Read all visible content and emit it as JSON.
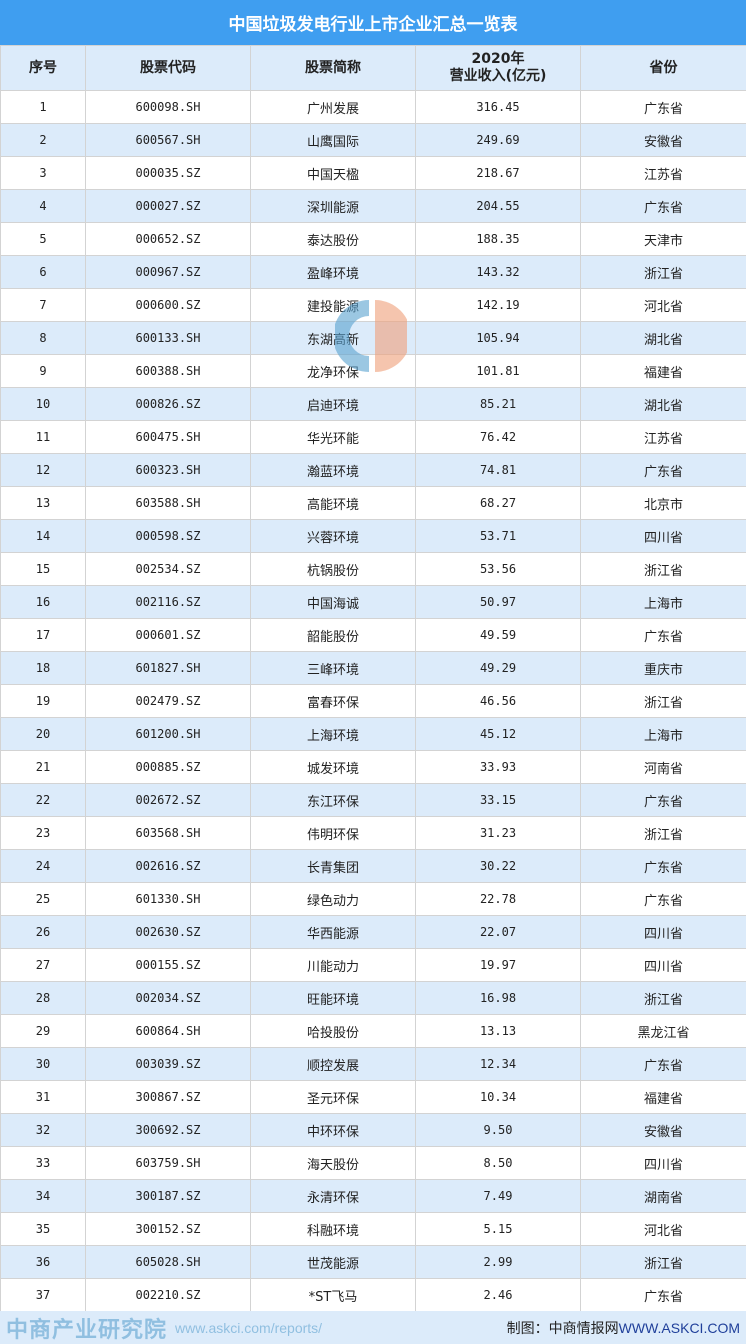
{
  "title": "中国垃圾发电行业上市企业汇总一览表",
  "headers": [
    "序号",
    "股票代码",
    "股票简称",
    "2020年\n营业收入(亿元)",
    "省份"
  ],
  "rows": [
    [
      "1",
      "600098.SH",
      "广州发展",
      "316.45",
      "广东省"
    ],
    [
      "2",
      "600567.SH",
      "山鹰国际",
      "249.69",
      "安徽省"
    ],
    [
      "3",
      "000035.SZ",
      "中国天楹",
      "218.67",
      "江苏省"
    ],
    [
      "4",
      "000027.SZ",
      "深圳能源",
      "204.55",
      "广东省"
    ],
    [
      "5",
      "000652.SZ",
      "泰达股份",
      "188.35",
      "天津市"
    ],
    [
      "6",
      "000967.SZ",
      "盈峰环境",
      "143.32",
      "浙江省"
    ],
    [
      "7",
      "000600.SZ",
      "建投能源",
      "142.19",
      "河北省"
    ],
    [
      "8",
      "600133.SH",
      "东湖高新",
      "105.94",
      "湖北省"
    ],
    [
      "9",
      "600388.SH",
      "龙净环保",
      "101.81",
      "福建省"
    ],
    [
      "10",
      "000826.SZ",
      "启迪环境",
      "85.21",
      "湖北省"
    ],
    [
      "11",
      "600475.SH",
      "华光环能",
      "76.42",
      "江苏省"
    ],
    [
      "12",
      "600323.SH",
      "瀚蓝环境",
      "74.81",
      "广东省"
    ],
    [
      "13",
      "603588.SH",
      "高能环境",
      "68.27",
      "北京市"
    ],
    [
      "14",
      "000598.SZ",
      "兴蓉环境",
      "53.71",
      "四川省"
    ],
    [
      "15",
      "002534.SZ",
      "杭锅股份",
      "53.56",
      "浙江省"
    ],
    [
      "16",
      "002116.SZ",
      "中国海诚",
      "50.97",
      "上海市"
    ],
    [
      "17",
      "000601.SZ",
      "韶能股份",
      "49.59",
      "广东省"
    ],
    [
      "18",
      "601827.SH",
      "三峰环境",
      "49.29",
      "重庆市"
    ],
    [
      "19",
      "002479.SZ",
      "富春环保",
      "46.56",
      "浙江省"
    ],
    [
      "20",
      "601200.SH",
      "上海环境",
      "45.12",
      "上海市"
    ],
    [
      "21",
      "000885.SZ",
      "城发环境",
      "33.93",
      "河南省"
    ],
    [
      "22",
      "002672.SZ",
      "东江环保",
      "33.15",
      "广东省"
    ],
    [
      "23",
      "603568.SH",
      "伟明环保",
      "31.23",
      "浙江省"
    ],
    [
      "24",
      "002616.SZ",
      "长青集团",
      "30.22",
      "广东省"
    ],
    [
      "25",
      "601330.SH",
      "绿色动力",
      "22.78",
      "广东省"
    ],
    [
      "26",
      "002630.SZ",
      "华西能源",
      "22.07",
      "四川省"
    ],
    [
      "27",
      "000155.SZ",
      "川能动力",
      "19.97",
      "四川省"
    ],
    [
      "28",
      "002034.SZ",
      "旺能环境",
      "16.98",
      "浙江省"
    ],
    [
      "29",
      "600864.SH",
      "哈投股份",
      "13.13",
      "黑龙江省"
    ],
    [
      "30",
      "003039.SZ",
      "顺控发展",
      "12.34",
      "广东省"
    ],
    [
      "31",
      "300867.SZ",
      "圣元环保",
      "10.34",
      "福建省"
    ],
    [
      "32",
      "300692.SZ",
      "中环环保",
      "9.50",
      "安徽省"
    ],
    [
      "33",
      "603759.SH",
      "海天股份",
      "8.50",
      "四川省"
    ],
    [
      "34",
      "300187.SZ",
      "永清环保",
      "7.49",
      "湖南省"
    ],
    [
      "35",
      "300152.SZ",
      "科融环境",
      "5.15",
      "河北省"
    ],
    [
      "36",
      "605028.SH",
      "世茂能源",
      "2.99",
      "浙江省"
    ],
    [
      "37",
      "002210.SZ",
      "*ST飞马",
      "2.46",
      "广东省"
    ]
  ],
  "footer": {
    "label": "制图：中商情报网",
    "site": "WWW.ASKCI.COM"
  },
  "watermark": {
    "name": "中商产业研究院",
    "url": "www.askci.com/reports/"
  },
  "colors": {
    "title_bg": "#3f9ef0",
    "alt_row": "#dcebfa",
    "border": "#d3d3d3"
  }
}
